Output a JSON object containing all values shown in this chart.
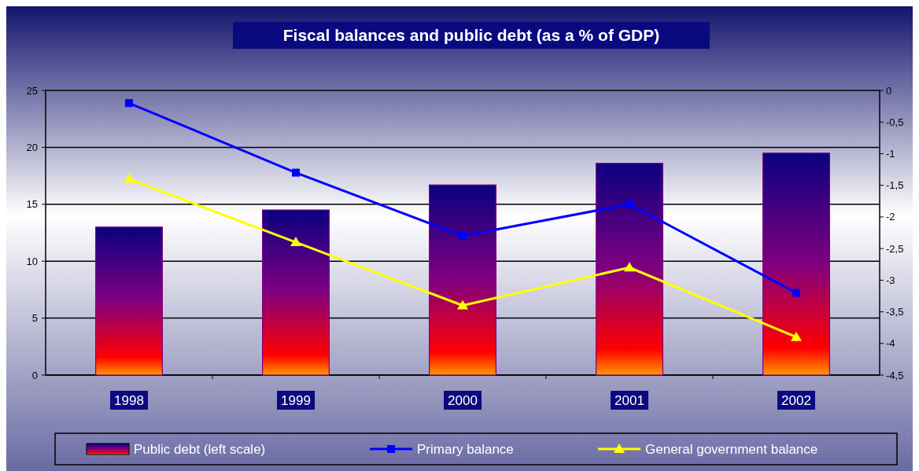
{
  "chart_data": {
    "type": "bar",
    "title": "Fiscal balances and public debt (as a % of GDP)",
    "categories": [
      "1998",
      "1999",
      "2000",
      "2001",
      "2002"
    ],
    "series": [
      {
        "name": "Public debt (left scale)",
        "color": "#800080",
        "values": [
          13.0,
          14.5,
          16.7,
          18.6,
          19.5
        ]
      },
      {
        "name": "Primary balance",
        "type": "line",
        "axis": "y2",
        "color": "#0000ff",
        "marker": "square",
        "values": [
          -0.2,
          -1.3,
          -2.3,
          -1.8,
          -3.2
        ]
      },
      {
        "name": "General government balance",
        "type": "line",
        "axis": "y2",
        "color": "#ffff00",
        "marker": "triangle",
        "values": [
          -1.4,
          -2.4,
          -3.4,
          -2.8,
          -3.9
        ]
      }
    ],
    "ylim": [
      0,
      25
    ],
    "yticks": [
      0,
      5,
      10,
      15,
      20,
      25
    ],
    "y2lim": [
      -4.5,
      0
    ],
    "y2ticks": [
      {
        "value": 0,
        "label": "0"
      },
      {
        "value": -0.5,
        "label": "-0,5"
      },
      {
        "value": -1,
        "label": "-1"
      },
      {
        "value": -1.5,
        "label": "-1,5"
      },
      {
        "value": -2,
        "label": "-2"
      },
      {
        "value": -2.5,
        "label": "-2,5"
      },
      {
        "value": -3,
        "label": "-3"
      },
      {
        "value": -3.5,
        "label": "-3,5"
      },
      {
        "value": -4,
        "label": "-4"
      },
      {
        "value": -4.5,
        "label": "-4,5"
      }
    ],
    "grid": "y",
    "legend": "bottom"
  }
}
